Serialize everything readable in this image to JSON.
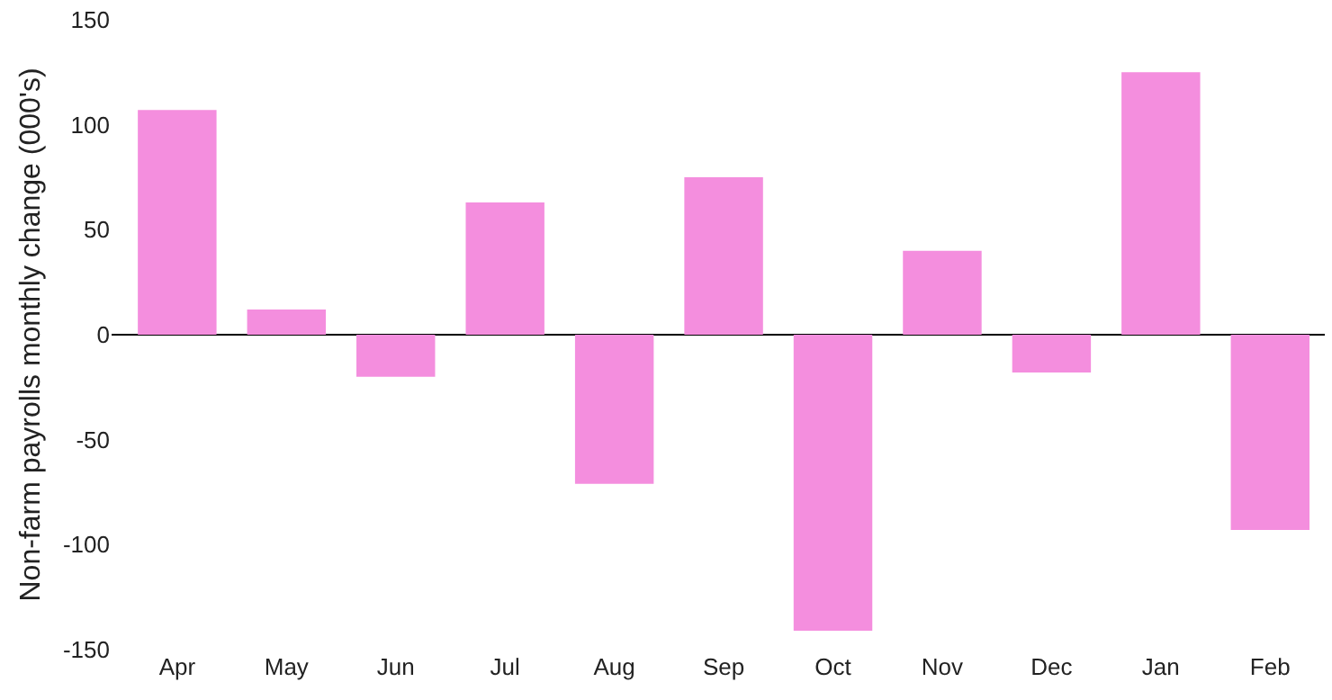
{
  "chart_data": {
    "type": "bar",
    "ylabel": "Non-farm payrolls monthly change (000's)",
    "categories": [
      "Apr",
      "May",
      "Jun",
      "Jul",
      "Aug",
      "Sep",
      "Oct",
      "Nov",
      "Dec",
      "Jan",
      "Feb"
    ],
    "values": [
      107,
      12,
      -20,
      63,
      -71,
      75,
      -141,
      40,
      -18,
      125,
      -93
    ],
    "color": "#f48ede",
    "ylim": [
      -150,
      150
    ],
    "yticks": [
      -150,
      -100,
      -50,
      0,
      50,
      100,
      150
    ]
  }
}
